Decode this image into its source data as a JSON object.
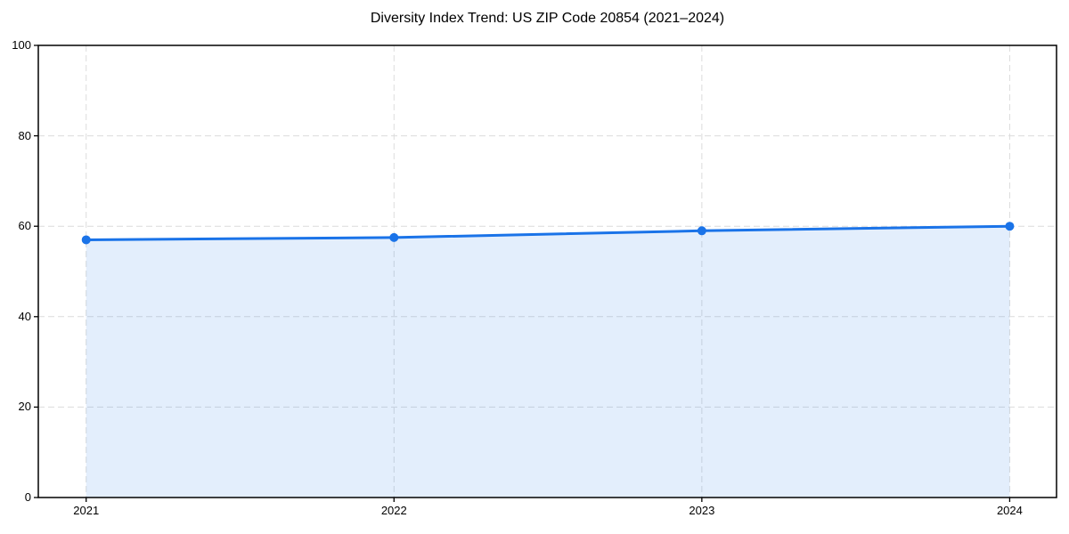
{
  "chart_data": {
    "type": "area",
    "title": "Diversity Index Trend: US ZIP Code 20854 (2021–2024)",
    "x": [
      "2021",
      "2022",
      "2023",
      "2024"
    ],
    "series": [
      {
        "name": "Diversity Index",
        "values": [
          57,
          57.5,
          59,
          60
        ]
      }
    ],
    "ylim": [
      0,
      100
    ],
    "yticks": [
      0,
      20,
      40,
      60,
      80,
      100
    ],
    "xlabel": "",
    "ylabel": "",
    "legend": "none",
    "grid": "dashed-both-axes",
    "frame": "full-box",
    "line_color": "#1a73e8",
    "marker": "circle",
    "marker_radius": 5,
    "line_width": 3,
    "fill_color": "#1a73e8",
    "fill_opacity": 0.12,
    "gridline_color": "#dcdcdc",
    "axis_color": "#000000",
    "text_color": "#000000",
    "background_color": "#ffffff"
  }
}
